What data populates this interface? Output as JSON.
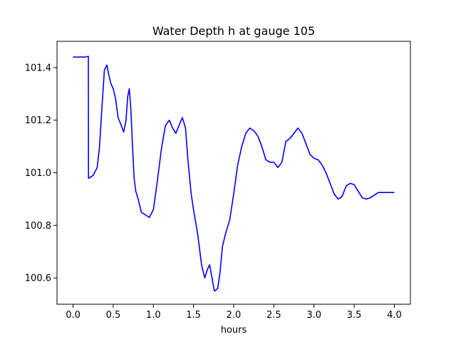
{
  "chart_data": {
    "type": "line",
    "title": "Water Depth h at gauge 105",
    "xlabel": "hours",
    "ylabel": "",
    "xlim": [
      -0.2,
      4.2
    ],
    "ylim": [
      100.5,
      101.5
    ],
    "xticks": [
      0.0,
      0.5,
      1.0,
      1.5,
      2.0,
      2.5,
      3.0,
      3.5,
      4.0
    ],
    "xtick_labels": [
      "0.0",
      "0.5",
      "1.0",
      "1.5",
      "2.0",
      "2.5",
      "3.0",
      "3.5",
      "4.0"
    ],
    "yticks": [
      100.6,
      100.8,
      101.0,
      101.2,
      101.4
    ],
    "ytick_labels": [
      "100.6",
      "100.8",
      "101.0",
      "101.2",
      "101.4"
    ],
    "grid": false,
    "series": [
      {
        "color": "#0000ff",
        "x": [
          0.0,
          0.05,
          0.1,
          0.15,
          0.19,
          0.192,
          0.2,
          0.25,
          0.3,
          0.33,
          0.36,
          0.39,
          0.42,
          0.44,
          0.47,
          0.5,
          0.53,
          0.56,
          0.6,
          0.63,
          0.66,
          0.68,
          0.7,
          0.72,
          0.74,
          0.76,
          0.78,
          0.81,
          0.85,
          0.9,
          0.95,
          1.0,
          1.05,
          1.1,
          1.15,
          1.2,
          1.24,
          1.28,
          1.32,
          1.36,
          1.4,
          1.43,
          1.47,
          1.5,
          1.55,
          1.6,
          1.64,
          1.67,
          1.7,
          1.73,
          1.76,
          1.8,
          1.83,
          1.86,
          1.9,
          1.95,
          2.0,
          2.05,
          2.1,
          2.15,
          2.2,
          2.25,
          2.3,
          2.35,
          2.4,
          2.45,
          2.5,
          2.55,
          2.6,
          2.65,
          2.7,
          2.75,
          2.8,
          2.85,
          2.9,
          2.95,
          3.0,
          3.05,
          3.1,
          3.15,
          3.2,
          3.25,
          3.3,
          3.35,
          3.4,
          3.45,
          3.5,
          3.55,
          3.6,
          3.65,
          3.7,
          3.75,
          3.8,
          3.85,
          3.9,
          3.95,
          4.0
        ],
        "y": [
          101.44,
          101.44,
          101.44,
          101.44,
          101.443,
          100.98,
          100.98,
          100.99,
          101.02,
          101.1,
          101.25,
          101.39,
          101.41,
          101.38,
          101.34,
          101.32,
          101.28,
          101.21,
          101.18,
          101.155,
          101.2,
          101.29,
          101.32,
          101.24,
          101.1,
          100.98,
          100.93,
          100.9,
          100.85,
          100.84,
          100.83,
          100.86,
          100.97,
          101.09,
          101.18,
          101.2,
          101.17,
          101.15,
          101.18,
          101.21,
          101.17,
          101.05,
          100.92,
          100.86,
          100.77,
          100.65,
          100.6,
          100.63,
          100.65,
          100.6,
          100.55,
          100.56,
          100.62,
          100.72,
          100.77,
          100.82,
          100.92,
          101.03,
          101.1,
          101.15,
          101.17,
          101.16,
          101.14,
          101.1,
          101.05,
          101.04,
          101.04,
          101.02,
          101.04,
          101.12,
          101.13,
          101.15,
          101.17,
          101.15,
          101.11,
          101.07,
          101.055,
          101.05,
          101.03,
          101.0,
          100.96,
          100.92,
          100.9,
          100.91,
          100.95,
          100.96,
          100.955,
          100.93,
          100.905,
          100.9,
          100.905,
          100.915,
          100.925,
          100.925,
          100.925,
          100.925,
          100.925
        ]
      }
    ]
  }
}
